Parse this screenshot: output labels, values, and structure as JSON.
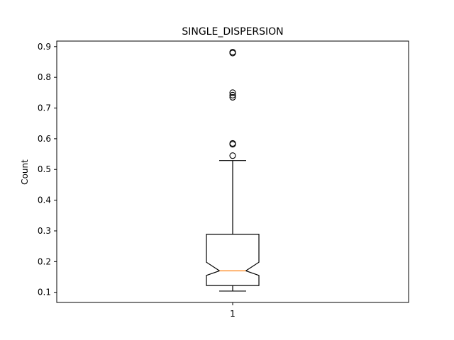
{
  "chart_data": {
    "type": "boxplot",
    "title": "SINGLE_DISPERSION",
    "ylabel": "Count",
    "xlabel": "",
    "categories": [
      "1"
    ],
    "ylim": [
      0.067,
      0.918
    ],
    "yticks": [
      0.1,
      0.2,
      0.3,
      0.4,
      0.5,
      0.6,
      0.7,
      0.8,
      0.9
    ],
    "ytick_labels": [
      "0.1",
      "0.2",
      "0.3",
      "0.4",
      "0.5",
      "0.6",
      "0.7",
      "0.8",
      "0.9"
    ],
    "notched": true,
    "grid": false,
    "box": {
      "whisker_low": 0.104,
      "q1": 0.122,
      "notch_low": 0.155,
      "median": 0.17,
      "notch_high": 0.198,
      "q3": 0.289,
      "whisker_high": 0.529
    },
    "outliers": [
      0.545,
      0.582,
      0.585,
      0.735,
      0.742,
      0.75,
      0.879,
      0.882
    ],
    "colors": {
      "box": "#000000",
      "median": "#ff7f0e",
      "background": "#ffffff"
    }
  }
}
